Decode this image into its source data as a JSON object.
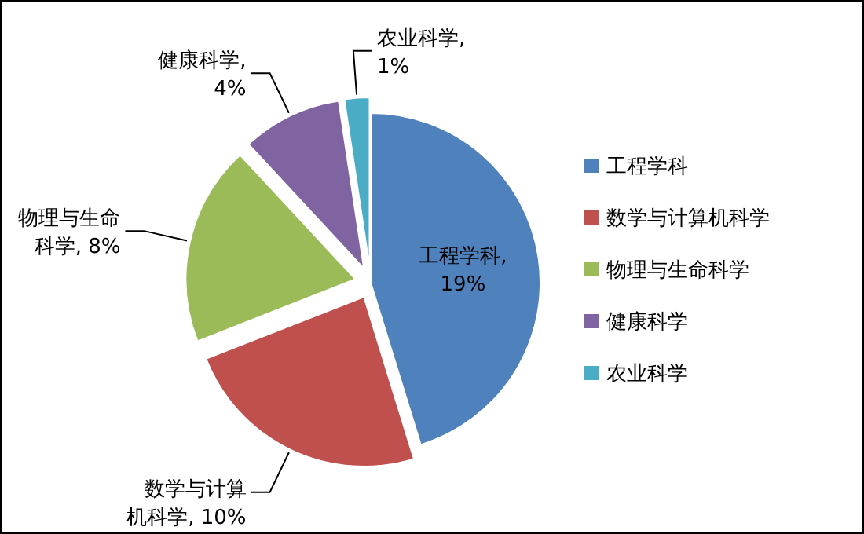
{
  "chart_data": {
    "type": "pie",
    "categories": [
      "工程学科",
      "数学与计算机科学",
      "物理与生命科学",
      "健康科学",
      "农业科学"
    ],
    "values": [
      19,
      10,
      8,
      4,
      1
    ],
    "colors": [
      "#4f81bd",
      "#c0504d",
      "#9bbb59",
      "#8064a2",
      "#4bacc6"
    ],
    "value_labels": [
      "工程学科, 19%",
      "数学与计算机科学, 10%",
      "物理与生命科学, 8%",
      "健康科学, 4%",
      "农业科学, 1%"
    ],
    "legend": "right"
  }
}
